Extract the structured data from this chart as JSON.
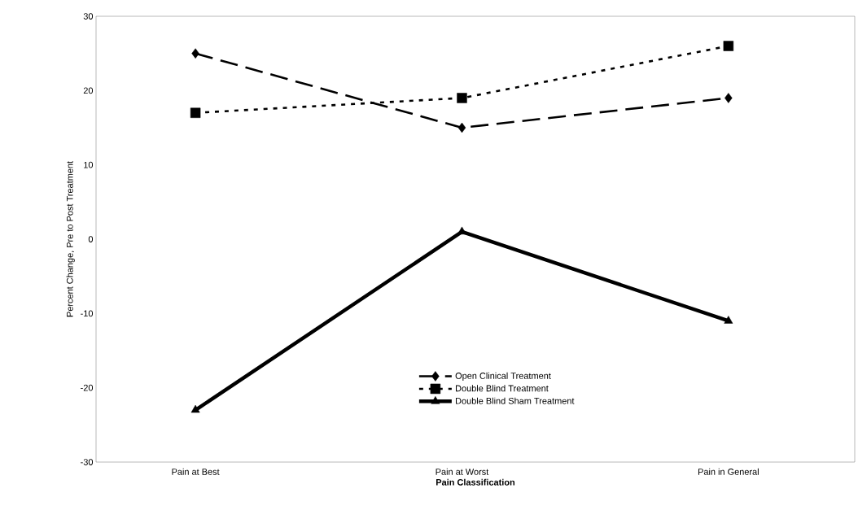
{
  "chart_data": {
    "type": "line",
    "xlabel": "Pain Classification",
    "ylabel": "Percent Change, Pre to Post Treatment",
    "categories": [
      "Pain at Best",
      "Pain at Worst",
      "Pain in General"
    ],
    "series": [
      {
        "name": "Open Clinical Treatment",
        "color": "#000000",
        "values": [
          25,
          15,
          19
        ],
        "marker": "diamond",
        "line_style": "dashed"
      },
      {
        "name": "Double Blind Treatment",
        "color": "#000000",
        "values": [
          17,
          19,
          26
        ],
        "marker": "square",
        "line_style": "dotted"
      },
      {
        "name": "Double Blind Sham Treatment",
        "color": "#000000",
        "values": [
          -23,
          1,
          -11
        ],
        "marker": "triangle",
        "line_style": "solid"
      }
    ],
    "ylim": [
      -30,
      30
    ],
    "yticks": [
      -30,
      -20,
      -10,
      0,
      10,
      20,
      30
    ],
    "grid": false,
    "legend": "bottom"
  }
}
